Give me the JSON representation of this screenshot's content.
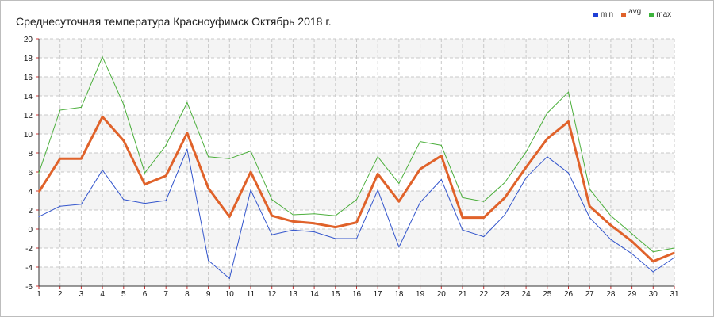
{
  "chart_data": {
    "type": "line",
    "title": "Среднесуточная температура Красноуфимск  Октябрь 2018 г.",
    "categories": [
      "1",
      "2",
      "3",
      "4",
      "5",
      "6",
      "7",
      "8",
      "9",
      "10",
      "11",
      "12",
      "13",
      "14",
      "15",
      "16",
      "17",
      "18",
      "19",
      "20",
      "21",
      "22",
      "23",
      "24",
      "25",
      "26",
      "27",
      "28",
      "29",
      "30",
      "31"
    ],
    "ylim": [
      -6,
      20
    ],
    "yticks": [
      "-6",
      "-4",
      "-2",
      "0",
      "2",
      "4",
      "6",
      "8",
      "10",
      "12",
      "14",
      "16",
      "18",
      "20"
    ],
    "grid": true,
    "legend_position": "top-right",
    "series": [
      {
        "name": "min",
        "color": "#3355cc",
        "values": [
          1.3,
          2.4,
          2.6,
          6.2,
          3.1,
          2.7,
          3.0,
          8.4,
          -3.3,
          -5.2,
          4.1,
          -0.6,
          -0.1,
          -0.3,
          -1.0,
          -1.0,
          4.1,
          -1.9,
          2.8,
          5.2,
          -0.1,
          -0.8,
          1.5,
          5.4,
          7.6,
          5.9,
          1.2,
          -1.1,
          -2.6,
          -4.5,
          -3.0
        ]
      },
      {
        "name": "avg",
        "color": "#e0622a",
        "values": [
          3.9,
          7.4,
          7.4,
          11.8,
          9.3,
          4.7,
          5.6,
          10.1,
          4.3,
          1.3,
          6.0,
          1.4,
          0.8,
          0.6,
          0.2,
          0.7,
          5.8,
          2.9,
          6.3,
          7.7,
          1.2,
          1.2,
          3.3,
          6.5,
          9.5,
          11.3,
          2.4,
          0.4,
          -1.3,
          -3.4,
          -2.5
        ]
      },
      {
        "name": "max",
        "color": "#4caf3c",
        "values": [
          5.9,
          12.5,
          12.8,
          18.1,
          13.1,
          5.9,
          8.8,
          13.3,
          7.6,
          7.4,
          8.2,
          3.1,
          1.5,
          1.6,
          1.4,
          3.1,
          7.6,
          4.8,
          9.2,
          8.8,
          3.3,
          2.9,
          4.9,
          8.1,
          12.2,
          14.4,
          4.2,
          1.4,
          -0.5,
          -2.4,
          -2.0
        ]
      }
    ]
  }
}
